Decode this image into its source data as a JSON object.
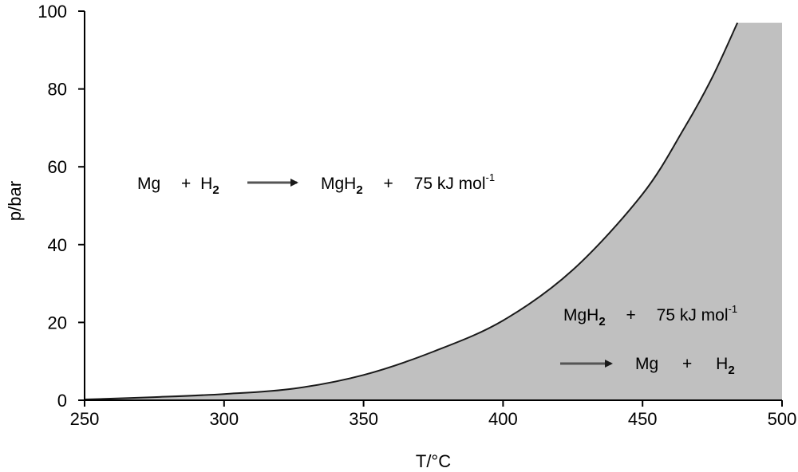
{
  "chart_data": {
    "type": "area",
    "xlabel": "T/°C",
    "ylabel": "p/bar",
    "xlim": [
      250,
      500
    ],
    "ylim": [
      0,
      100
    ],
    "xticks": [
      "250",
      "300",
      "350",
      "400",
      "450",
      "500"
    ],
    "yticks": [
      "0",
      "20",
      "40",
      "60",
      "80",
      "100"
    ],
    "grid": false,
    "fill_side": "below-right",
    "colors": {
      "curve": "#1a1a1a",
      "fill": "#c0c0c0",
      "arrow": "#555555"
    },
    "series": [
      {
        "x": [
          250,
          275,
          300,
          325,
          350,
          375,
          400,
          425,
          450,
          465,
          475,
          484
        ],
        "values": [
          0.2,
          0.8,
          1.6,
          3.0,
          6.5,
          12.5,
          20.5,
          33.5,
          53,
          70,
          83,
          97
        ]
      }
    ],
    "annotations": {
      "absorption": {
        "reactant1": "Mg",
        "plus1": "+",
        "h2_main": "H",
        "h2_sub": "2",
        "product_main": "MgH",
        "product_sub": "2",
        "plus2": "+",
        "energy": "75 kJ mol",
        "energy_sup": "-1",
        "arrow_icon": "right-arrow-icon"
      },
      "desorption": {
        "reactant_main": "MgH",
        "reactant_sub": "2",
        "plus1": "+",
        "energy": "75 kJ mol",
        "energy_sup": "-1",
        "product1": "Mg",
        "plus2": "+",
        "h2_main": "H",
        "h2_sub": "2",
        "arrow_icon": "right-arrow-icon"
      }
    }
  }
}
